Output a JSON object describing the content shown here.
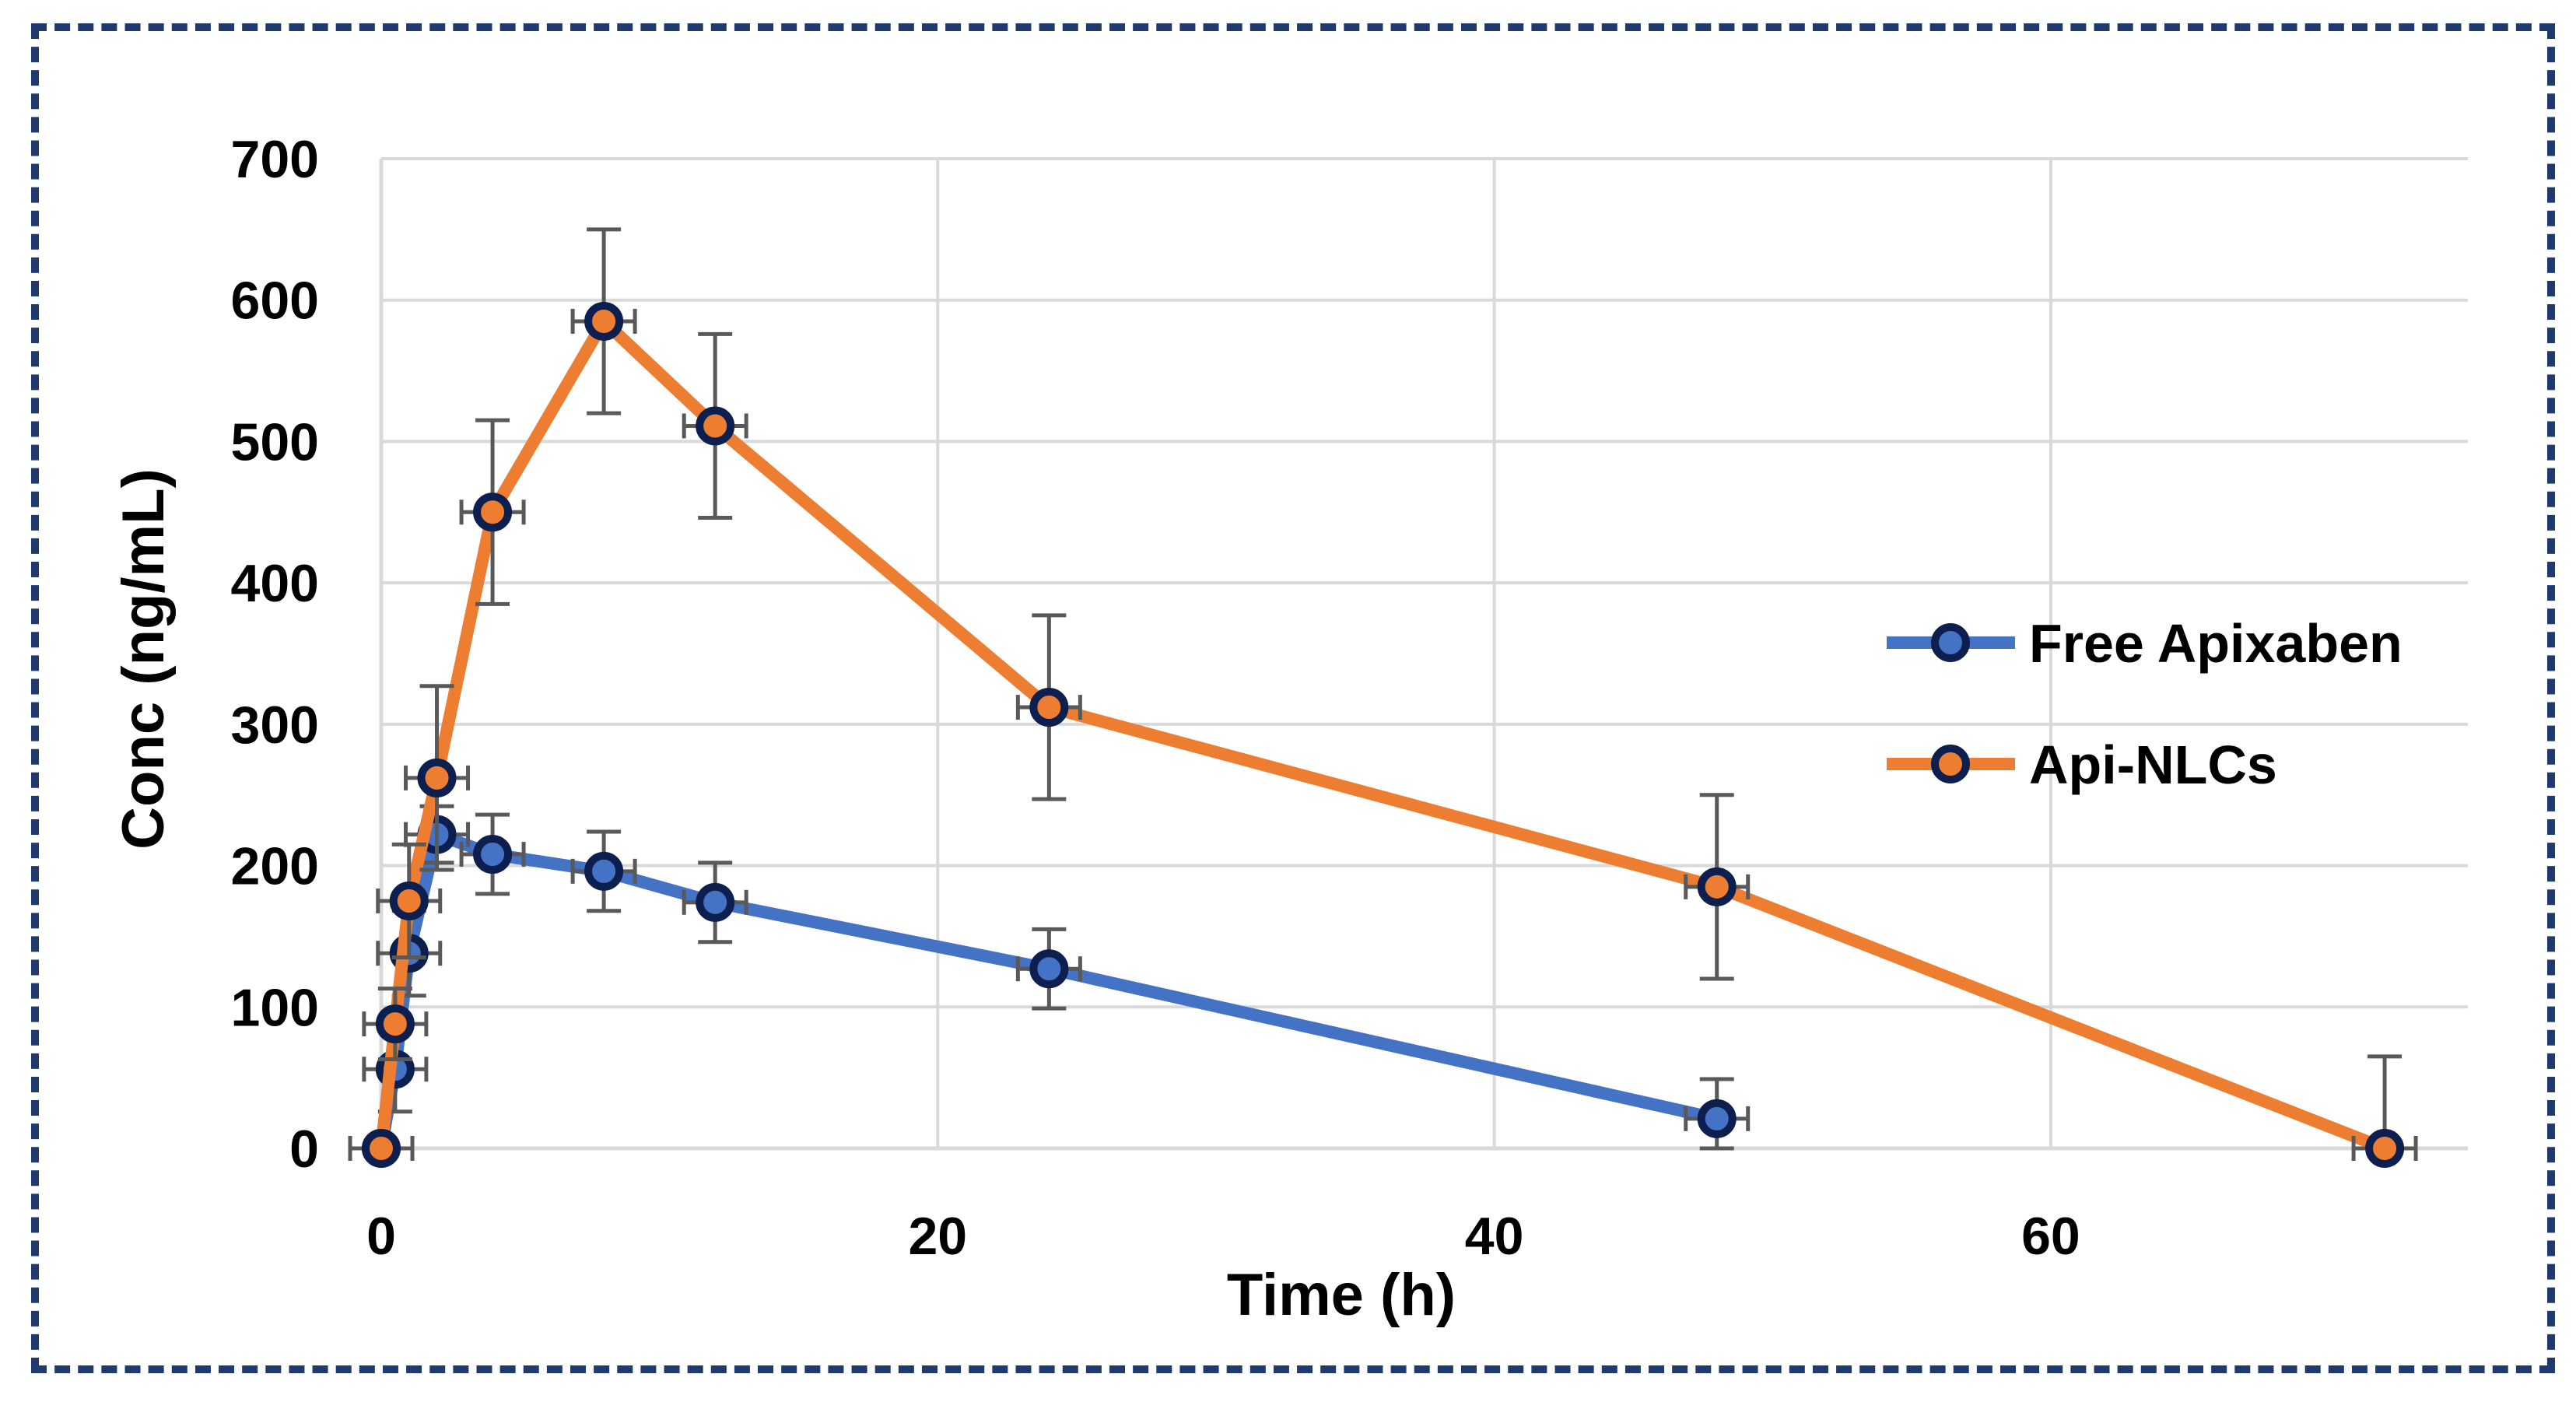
{
  "chart_data": {
    "type": "line",
    "title": "",
    "xlabel": "Time (h)",
    "ylabel": "Conc (ng/mL)",
    "xlim": [
      0,
      75
    ],
    "ylim": [
      0,
      700
    ],
    "x_ticks": [
      0,
      20,
      40,
      60
    ],
    "y_ticks": [
      0,
      100,
      200,
      300,
      400,
      500,
      600,
      700
    ],
    "grid": true,
    "legend_position": "right",
    "series": [
      {
        "name": "Free Apixaben",
        "color": "#4472c4",
        "x": [
          0,
          0.5,
          1,
          2,
          4,
          8,
          12,
          24,
          48
        ],
        "y": [
          0,
          56,
          138,
          222,
          208,
          196,
          174,
          127,
          21
        ],
        "yerr": [
          0,
          30,
          30,
          20,
          28,
          28,
          28,
          28,
          28
        ]
      },
      {
        "name": "Api-NLCs",
        "color": "#ed7d31",
        "x": [
          0,
          0.5,
          1,
          2,
          4,
          8,
          12,
          24,
          48,
          72
        ],
        "y": [
          0,
          88,
          175,
          262,
          450,
          585,
          511,
          312,
          185,
          0
        ],
        "yerr": [
          0,
          25,
          40,
          65,
          65,
          65,
          65,
          65,
          65,
          65
        ]
      }
    ]
  }
}
